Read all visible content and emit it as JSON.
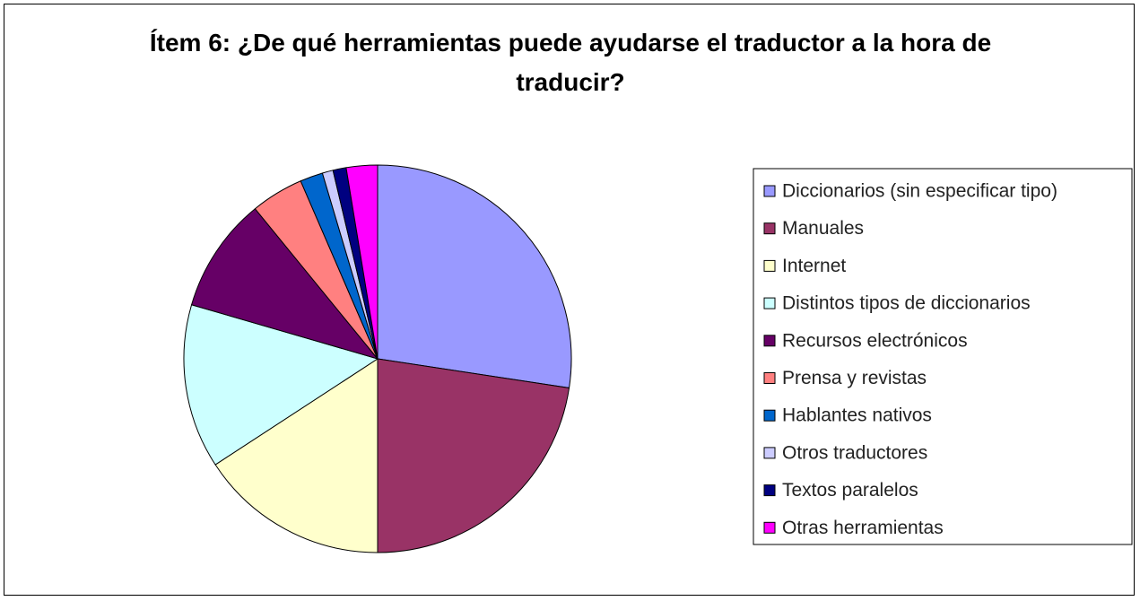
{
  "chart_data": {
    "type": "pie",
    "title": "Ítem 6: ¿De qué herramientas puede ayudarse el traductor a la hora de traducir?",
    "categories": [
      "Diccionarios (sin especificar tipo)",
      "Manuales",
      "Internet",
      "Distintos tipos de diccionarios",
      "Recursos electrónicos",
      "Prensa y revistas",
      "Hablantes nativos",
      "Otros traductores",
      "Textos paralelos",
      "Otras herramientas"
    ],
    "values": [
      27.4,
      22.6,
      15.8,
      13.7,
      9.6,
      4.4,
      1.9,
      0.9,
      1.1,
      2.6
    ],
    "colors": [
      "#9999ff",
      "#993366",
      "#ffffcc",
      "#ccffff",
      "#660066",
      "#ff8080",
      "#0066cc",
      "#ccccff",
      "#000080",
      "#ff00ff"
    ],
    "legend": "right"
  }
}
